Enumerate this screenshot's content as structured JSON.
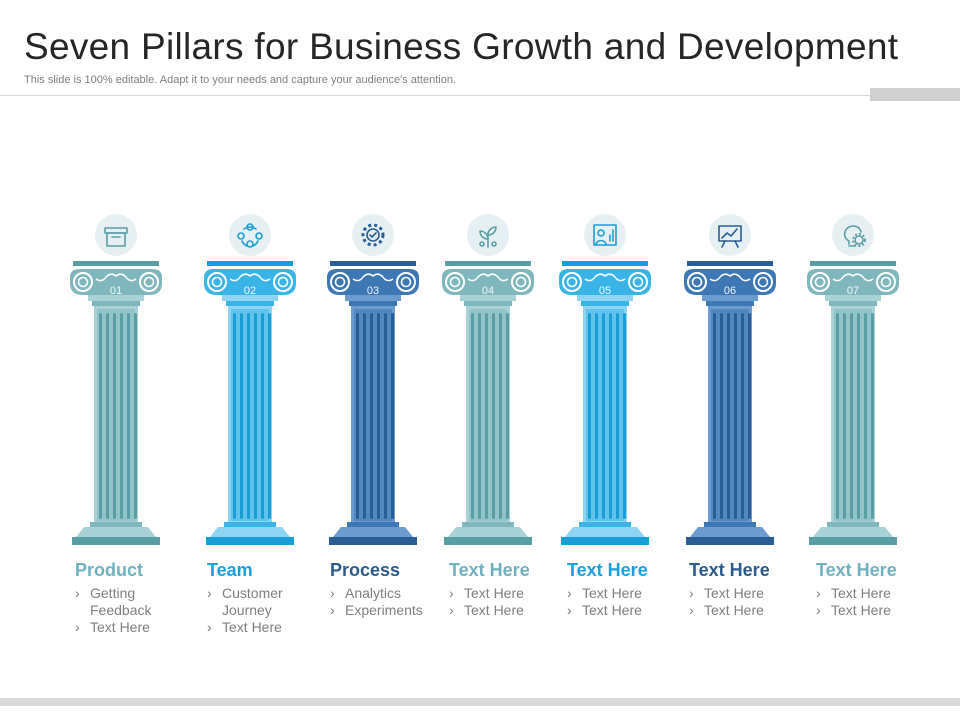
{
  "slide": {
    "title": "Seven Pillars for Business Growth and Development",
    "subtitle": "This slide is 100% editable. Adapt it to your needs and capture your audience's attention."
  },
  "pillars": [
    {
      "number": "01",
      "icon": "package-box-icon",
      "color_main": "#7fb7bd",
      "color_dark": "#5a9ea5",
      "color_light": "#a9d2d6",
      "title_color": "#6fb1bd",
      "title": "Product",
      "bullets": [
        "Getting Feedback",
        "Text Here"
      ]
    },
    {
      "number": "02",
      "icon": "team-network-icon",
      "color_main": "#3ab4e6",
      "color_dark": "#1a9ed6",
      "color_light": "#8fd4f2",
      "title_color": "#1aa0dd",
      "title": "Team",
      "bullets": [
        "Customer Journey",
        "Text Here"
      ]
    },
    {
      "number": "03",
      "icon": "process-gear-icon",
      "color_main": "#3d78b4",
      "color_dark": "#2a5d94",
      "color_light": "#6b9bcf",
      "title_color": "#2b5a8c",
      "title": "Process",
      "bullets": [
        "Analytics",
        "Experiments"
      ]
    },
    {
      "number": "04",
      "icon": "growth-plant-icon",
      "color_main": "#7fb7bd",
      "color_dark": "#5a9ea5",
      "color_light": "#a9d2d6",
      "title_color": "#6fb1bd",
      "title": "Text Here",
      "bullets": [
        "Text Here",
        "Text Here"
      ]
    },
    {
      "number": "05",
      "icon": "analyst-chart-icon",
      "color_main": "#3ab4e6",
      "color_dark": "#1a9ed6",
      "color_light": "#8fd4f2",
      "title_color": "#1aa0dd",
      "title": "Text Here",
      "bullets": [
        "Text Here",
        "Text Here"
      ]
    },
    {
      "number": "06",
      "icon": "presentation-board-icon",
      "color_main": "#3d78b4",
      "color_dark": "#2a5d94",
      "color_light": "#6b9bcf",
      "title_color": "#2b5a8c",
      "title": "Text Here",
      "bullets": [
        "Text Here",
        "Text Here"
      ]
    },
    {
      "number": "07",
      "icon": "idea-bulb-gear-icon",
      "color_main": "#7fb7bd",
      "color_dark": "#5a9ea5",
      "color_light": "#a9d2d6",
      "title_color": "#6fb1bd",
      "title": "Text Here",
      "bullets": [
        "Text Here",
        "Text Here"
      ]
    }
  ]
}
